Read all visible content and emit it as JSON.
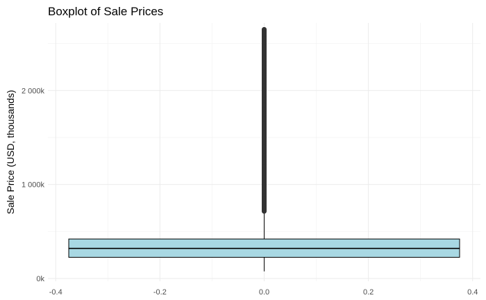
{
  "chart_data": {
    "type": "boxplot",
    "title": "Boxplot of Sale Prices",
    "xlabel": "",
    "ylabel": "Sale Price (USD, thousands)",
    "xlim": [
      -0.415,
      0.415
    ],
    "ylim": [
      -30,
      2720
    ],
    "x_ticks": [
      -0.4,
      -0.2,
      0.0,
      0.2,
      0.4
    ],
    "x_tick_labels": [
      "-0.4",
      "-0.2",
      "0.0",
      "0.2",
      "0.4"
    ],
    "y_ticks": [
      0,
      1000,
      2000
    ],
    "y_tick_labels": [
      "0k",
      "1 000k",
      "2 000k"
    ],
    "grid": true,
    "box": {
      "x_min": -0.375,
      "x_max": 0.375,
      "lower_whisker": 75,
      "q1": 225,
      "median": 320,
      "q3": 420,
      "upper_whisker": 715
    },
    "outliers": {
      "x": 0.0,
      "y_min": 715,
      "y_max": 2650,
      "sample": [
        720,
        735,
        750,
        770,
        790,
        810,
        830,
        850,
        880,
        900,
        930,
        960,
        990,
        1020,
        1050,
        1080,
        1120,
        1160,
        1200,
        1240,
        1280,
        1320,
        1360,
        1400,
        1450,
        1500,
        1550,
        1600,
        1650,
        1700,
        1750,
        1800,
        1850,
        1900,
        1950,
        2000,
        2050,
        2100,
        2150,
        2200,
        2250,
        2300,
        2350,
        2400,
        2450,
        2480,
        2510,
        2540,
        2560,
        2580,
        2600,
        2620,
        2640,
        2650
      ]
    },
    "colors": {
      "box_fill": "#a8d8e3",
      "box_line": "#000000",
      "outlier": "#333333"
    }
  }
}
